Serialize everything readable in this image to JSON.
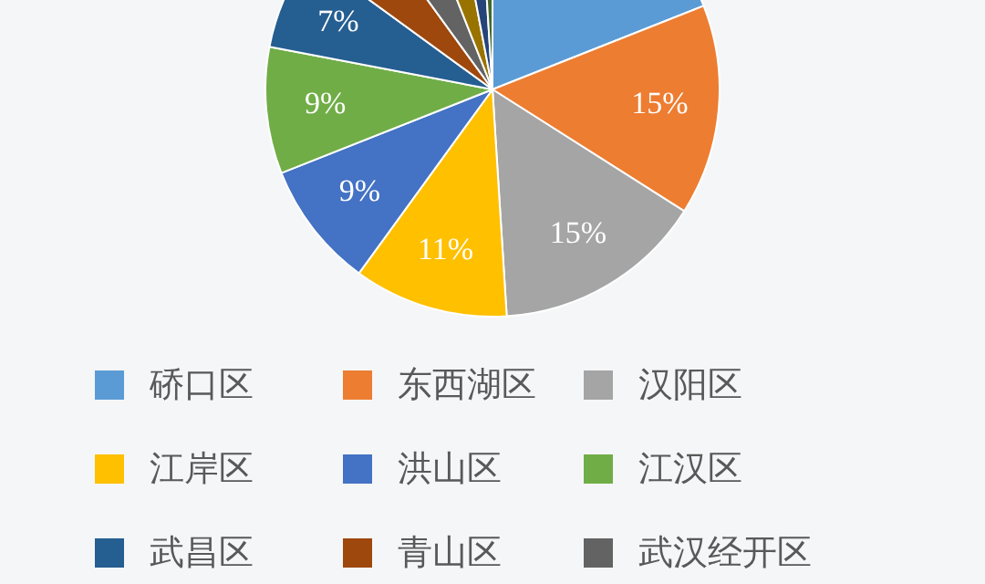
{
  "chart_data": {
    "type": "pie",
    "categories": [
      "硚口区",
      "东西湖区",
      "汉阳区",
      "江岸区",
      "洪山区",
      "江汉区",
      "武昌区",
      "青山区",
      "武汉经开区",
      null,
      null,
      null
    ],
    "values": [
      19,
      15,
      15,
      11,
      9,
      9,
      7,
      5,
      4,
      3,
      2,
      1
    ],
    "colors": [
      "#5b9bd5",
      "#ed7d31",
      "#a5a5a5",
      "#ffc000",
      "#4472c4",
      "#70ad47",
      "#255e91",
      "#9e480e",
      "#636363",
      "#997300",
      "#264478",
      "#43682b"
    ],
    "value_labels": [
      null,
      "15%",
      "15%",
      "11%",
      "9%",
      "9%",
      "7%",
      null,
      null,
      null,
      null,
      null
    ],
    "legend": "bottom"
  }
}
